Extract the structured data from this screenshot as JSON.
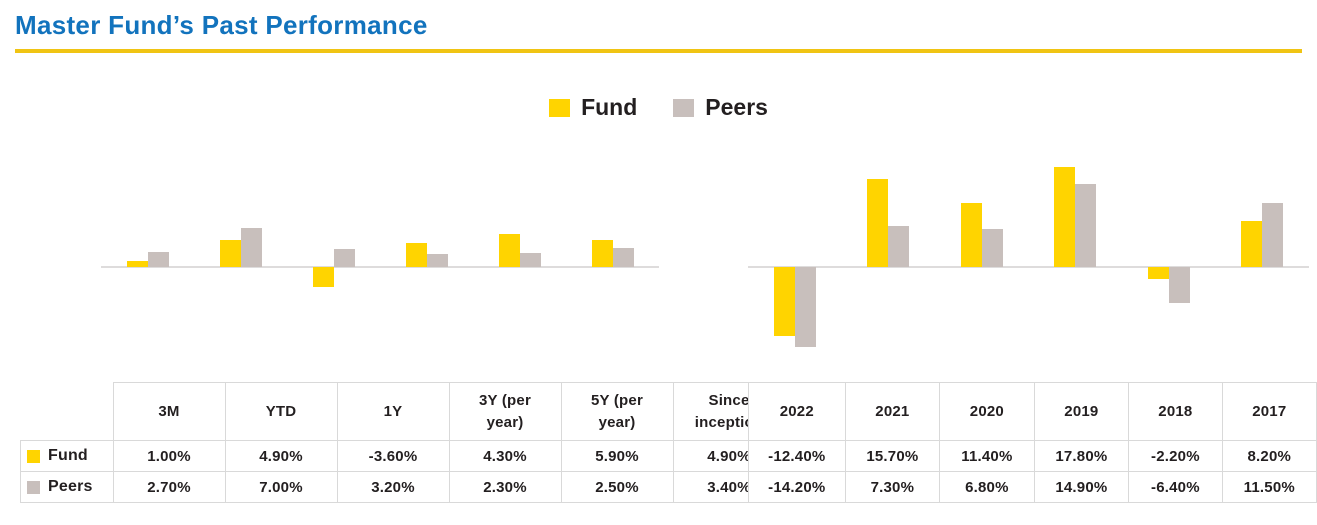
{
  "header": {
    "title": "Master Fund’s Past Performance",
    "title_color": "#1273bd",
    "underline_color": "#f0c413"
  },
  "legend": {
    "position": "top-center",
    "items": [
      {
        "label": "Fund",
        "color": "#ffd400"
      },
      {
        "label": "Peers",
        "color": "#c8bfbc"
      }
    ]
  },
  "text_color": "#231f20",
  "table_border_color": "#d9d9d9",
  "axis_line_color": "#dedcdc",
  "value_format": "0.00%",
  "chart_data": [
    {
      "type": "bar",
      "title": "",
      "xlabel": "",
      "ylabel": "",
      "grid": false,
      "ylim": [
        -5,
        8
      ],
      "categories": [
        "3M",
        "YTD",
        "1Y",
        "3Y (per year)",
        "5Y (per year)",
        "Since inception"
      ],
      "series": [
        {
          "name": "Fund",
          "color": "#ffd400",
          "values": [
            1.0,
            4.9,
            -3.6,
            4.3,
            5.9,
            4.9
          ]
        },
        {
          "name": "Peers",
          "color": "#c8bfbc",
          "values": [
            2.7,
            7.0,
            3.2,
            2.3,
            2.5,
            3.4
          ]
        }
      ],
      "table": {
        "show_row_labels": true,
        "headers": [
          "3M",
          "YTD",
          "1Y",
          "3Y (per year)",
          "5Y (per year)",
          "Since inception"
        ],
        "rows": [
          {
            "label": "Fund",
            "cells": [
              "1.00%",
              "4.90%",
              "-3.60%",
              "4.30%",
              "5.90%",
              "4.90%"
            ]
          },
          {
            "label": "Peers",
            "cells": [
              "2.70%",
              "7.00%",
              "3.20%",
              "2.30%",
              "2.50%",
              "3.40%"
            ]
          }
        ]
      }
    },
    {
      "type": "bar",
      "title": "",
      "xlabel": "",
      "ylabel": "",
      "grid": false,
      "ylim": [
        -16,
        19
      ],
      "categories": [
        "2022",
        "2021",
        "2020",
        "2019",
        "2018",
        "2017"
      ],
      "series": [
        {
          "name": "Fund",
          "color": "#ffd400",
          "values": [
            -12.4,
            15.7,
            11.4,
            17.8,
            -2.2,
            8.2
          ]
        },
        {
          "name": "Peers",
          "color": "#c8bfbc",
          "values": [
            -14.2,
            7.3,
            6.8,
            14.9,
            -6.4,
            11.5
          ]
        }
      ],
      "table": {
        "show_row_labels": false,
        "headers": [
          "2022",
          "2021",
          "2020",
          "2019",
          "2018",
          "2017"
        ],
        "rows": [
          {
            "label": "Fund",
            "cells": [
              "-12.40%",
              "15.70%",
              "11.40%",
              "17.80%",
              "-2.20%",
              "8.20%"
            ]
          },
          {
            "label": "Peers",
            "cells": [
              "-14.20%",
              "7.30%",
              "6.80%",
              "14.90%",
              "-6.40%",
              "11.50%"
            ]
          }
        ]
      }
    }
  ]
}
